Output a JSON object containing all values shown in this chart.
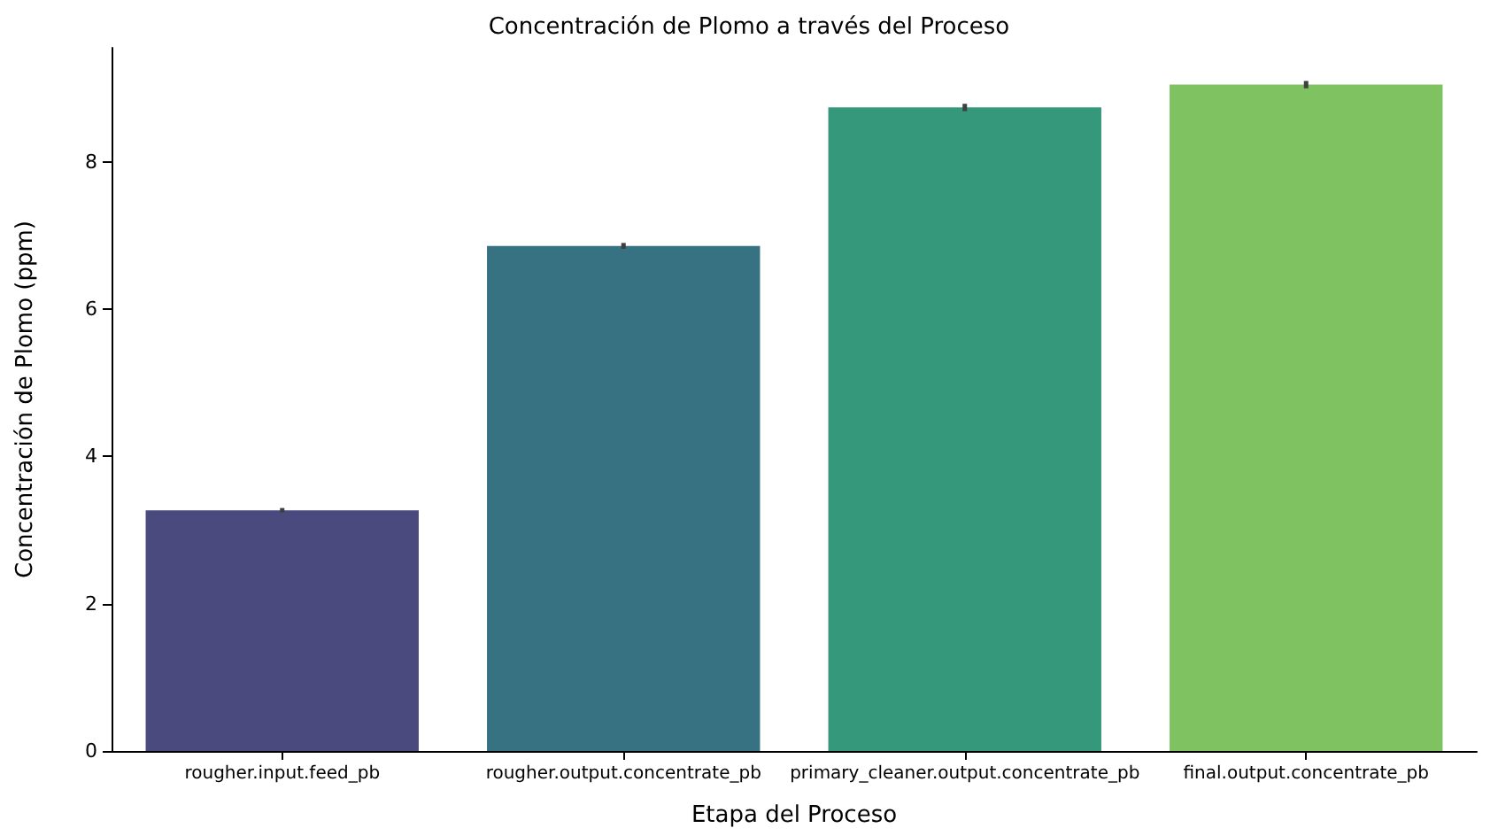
{
  "chart_data": {
    "type": "bar",
    "title": "Concentración de Plomo a través del Proceso",
    "xlabel": "Etapa del Proceso",
    "ylabel": "Concentración de Plomo (ppm)",
    "categories": [
      "rougher.input.feed_pb",
      "rougher.output.concentrate_pb",
      "primary_cleaner.output.concentrate_pb",
      "final.output.concentrate_pb"
    ],
    "values": [
      3.27,
      6.86,
      8.74,
      9.05
    ],
    "colors": [
      "#4b4a7e",
      "#377282",
      "#35987b",
      "#7fc261"
    ],
    "errors": [
      0.03,
      0.04,
      0.05,
      0.05
    ],
    "ylim": [
      0,
      9.55
    ],
    "yticks": [
      0,
      2,
      4,
      6,
      8
    ],
    "grid": false
  }
}
